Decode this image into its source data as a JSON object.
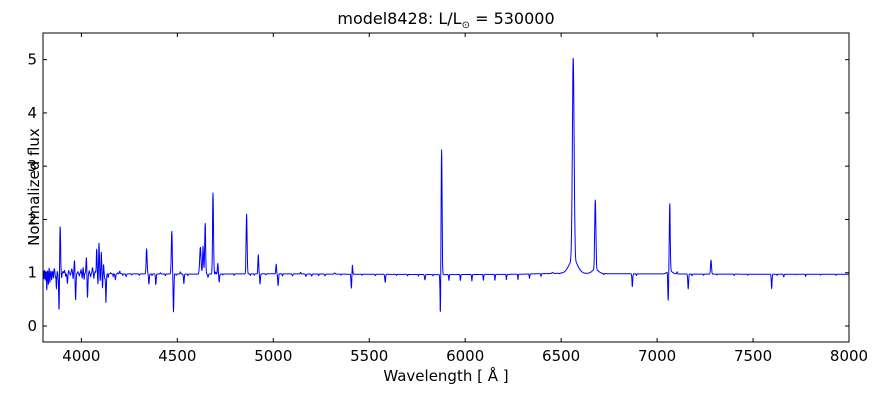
{
  "chart_data": {
    "type": "line",
    "title": "model8428: L/L⊙ = 530000",
    "title_parts": [
      "model8428: L/L",
      "⊙",
      " = 530000"
    ],
    "xlabel": "Wavelength [ Å ]",
    "ylabel": "Normalized flux",
    "xlim": [
      3800,
      8000
    ],
    "ylim": [
      -0.3,
      5.5
    ],
    "xticks": [
      4000,
      4500,
      5000,
      5500,
      6000,
      6500,
      7000,
      7500,
      8000
    ],
    "yticks": [
      0,
      1,
      2,
      3,
      4,
      5
    ],
    "line_color": "#0000ff",
    "axis_color": "#000000",
    "background": "#ffffff",
    "legend": "none",
    "grid": false,
    "continuum_baseline": [
      [
        3800,
        1.0
      ],
      [
        4150,
        0.98
      ],
      [
        4600,
        0.975
      ],
      [
        5000,
        0.98
      ],
      [
        5880,
        0.965
      ],
      [
        6250,
        0.97
      ],
      [
        6500,
        0.99
      ],
      [
        6800,
        0.98
      ],
      [
        7200,
        0.975
      ],
      [
        8000,
        0.97
      ]
    ],
    "features_format": [
      "wavelength_A",
      "peak_normalized_flux",
      "gaussian_sigma_A"
    ],
    "features": [
      [
        3802,
        1.05,
        1.5
      ],
      [
        3805,
        0.88,
        1.5
      ],
      [
        3809,
        1.07,
        1.5
      ],
      [
        3812,
        0.85,
        1.5
      ],
      [
        3816,
        1.04,
        1.5
      ],
      [
        3820,
        0.68,
        1.5
      ],
      [
        3824,
        1.05,
        1.5
      ],
      [
        3828,
        0.78,
        1.5
      ],
      [
        3832,
        1.1,
        1.5
      ],
      [
        3836,
        0.82,
        1.5
      ],
      [
        3841,
        1.04,
        1.5
      ],
      [
        3845,
        0.87,
        1.5
      ],
      [
        3850,
        1.03,
        1.5
      ],
      [
        3854,
        0.9,
        1.5
      ],
      [
        3859,
        1.08,
        2
      ],
      [
        3865,
        0.91,
        1.5
      ],
      [
        3870,
        0.7,
        1.5
      ],
      [
        3875,
        1.03,
        1.5
      ],
      [
        3879,
        0.93,
        1.5
      ],
      [
        3884,
        0.2,
        2
      ],
      [
        3889,
        1.9,
        2.5
      ],
      [
        3897,
        0.91,
        1.5
      ],
      [
        3904,
        1.03,
        1.5
      ],
      [
        3912,
        1.05,
        1.5
      ],
      [
        3919,
        0.94,
        1.5
      ],
      [
        3927,
        0.81,
        2
      ],
      [
        3934,
        1.05,
        1.5
      ],
      [
        3943,
        0.96,
        1.5
      ],
      [
        3950,
        1.08,
        2
      ],
      [
        3957,
        0.9,
        1.5
      ],
      [
        3964,
        1.24,
        2
      ],
      [
        3970,
        0.5,
        2
      ],
      [
        3982,
        1.03,
        1.5
      ],
      [
        3989,
        0.95,
        1.5
      ],
      [
        3998,
        1.07,
        1.5
      ],
      [
        4004,
        0.91,
        1.5
      ],
      [
        4009,
        1.11,
        1.5
      ],
      [
        4014,
        0.89,
        1.5
      ],
      [
        4026,
        1.3,
        2
      ],
      [
        4032,
        0.55,
        2
      ],
      [
        4041,
        1.05,
        1.5
      ],
      [
        4048,
        0.94,
        1.5
      ],
      [
        4058,
        1.11,
        2
      ],
      [
        4065,
        0.91,
        1.5
      ],
      [
        4072,
        1.04,
        1.5
      ],
      [
        4080,
        1.46,
        2
      ],
      [
        4086,
        0.8,
        1.5
      ],
      [
        4092,
        1.57,
        2
      ],
      [
        4098,
        0.86,
        1.5
      ],
      [
        4104,
        1.4,
        2
      ],
      [
        4110,
        0.73,
        1.5
      ],
      [
        4116,
        1.17,
        1.5
      ],
      [
        4122,
        0.91,
        1.5
      ],
      [
        4128,
        0.46,
        2
      ],
      [
        4140,
        0.93,
        1.5
      ],
      [
        4153,
        1.02,
        1.5
      ],
      [
        4166,
        0.95,
        1.5
      ],
      [
        4177,
        0.89,
        2
      ],
      [
        4190,
        1.02,
        1.5
      ],
      [
        4200,
        1.05,
        2
      ],
      [
        4216,
        0.97,
        1.5
      ],
      [
        4233,
        0.95,
        2
      ],
      [
        4262,
        0.98,
        2
      ],
      [
        4302,
        0.975,
        2
      ],
      [
        4340,
        1.47,
        2.5
      ],
      [
        4352,
        0.81,
        2
      ],
      [
        4368,
        0.97,
        1.5
      ],
      [
        4388,
        0.8,
        2
      ],
      [
        4412,
        1.02,
        2
      ],
      [
        4438,
        0.97,
        1.5
      ],
      [
        4471,
        1.8,
        2.5
      ],
      [
        4480,
        0.29,
        2
      ],
      [
        4495,
        0.98,
        1.5
      ],
      [
        4516,
        1.04,
        2
      ],
      [
        4534,
        0.82,
        2
      ],
      [
        4555,
        0.97,
        1.5
      ],
      [
        4620,
        1.5,
        3.5
      ],
      [
        4634,
        1.52,
        2.5
      ],
      [
        4645,
        1.95,
        2.5
      ],
      [
        4660,
        0.94,
        2
      ],
      [
        4686,
        2.52,
        2.5
      ],
      [
        4700,
        1.04,
        1.5
      ],
      [
        4711,
        1.2,
        2
      ],
      [
        4718,
        0.85,
        2
      ],
      [
        4736,
        0.98,
        1.5
      ],
      [
        4796,
        0.975,
        1.5
      ],
      [
        4861,
        2.12,
        2.5
      ],
      [
        4881,
        0.97,
        1.5
      ],
      [
        4901,
        0.975,
        1.5
      ],
      [
        4922,
        1.36,
        2
      ],
      [
        4931,
        0.81,
        2
      ],
      [
        4961,
        0.98,
        1.5
      ],
      [
        5015,
        1.18,
        2
      ],
      [
        5025,
        0.78,
        2
      ],
      [
        5048,
        0.96,
        1.5
      ],
      [
        5100,
        0.965,
        2
      ],
      [
        5142,
        1.03,
        2
      ],
      [
        5170,
        0.955,
        2
      ],
      [
        5200,
        0.96,
        2
      ],
      [
        5236,
        0.97,
        1.5
      ],
      [
        5270,
        0.965,
        2
      ],
      [
        5320,
        1.02,
        2.5
      ],
      [
        5352,
        0.98,
        1.5
      ],
      [
        5407,
        0.73,
        2
      ],
      [
        5412,
        1.18,
        2
      ],
      [
        5462,
        0.98,
        1.5
      ],
      [
        5532,
        0.975,
        1.5
      ],
      [
        5583,
        0.85,
        2
      ],
      [
        5642,
        0.98,
        1.5
      ],
      [
        5700,
        0.975,
        1.5
      ],
      [
        5756,
        0.97,
        1.5
      ],
      [
        5790,
        0.9,
        2
      ],
      [
        5832,
        0.975,
        1.5
      ],
      [
        5871,
        0.18,
        2
      ],
      [
        5877,
        3.35,
        2.5
      ],
      [
        5915,
        0.89,
        1.5
      ],
      [
        5975,
        0.89,
        1.5
      ],
      [
        6035,
        0.88,
        1.5
      ],
      [
        6095,
        0.89,
        1.5
      ],
      [
        6155,
        0.89,
        1.5
      ],
      [
        6215,
        0.9,
        1.5
      ],
      [
        6275,
        0.9,
        1.5
      ],
      [
        6335,
        0.92,
        1.5
      ],
      [
        6395,
        0.95,
        1.5
      ],
      [
        6455,
        1.02,
        3
      ],
      [
        6492,
        0.99,
        1.5
      ],
      [
        6563,
        4.78,
        4.5
      ],
      [
        6563,
        1.26,
        22
      ],
      [
        6678,
        2.3,
        3
      ],
      [
        6678,
        1.08,
        16
      ],
      [
        6722,
        0.98,
        1.5
      ],
      [
        6871,
        0.76,
        2
      ],
      [
        6892,
        0.97,
        1.5
      ],
      [
        7058,
        0.45,
        2
      ],
      [
        7066,
        2.26,
        2.5
      ],
      [
        7066,
        1.06,
        13
      ],
      [
        7104,
        1.04,
        2
      ],
      [
        7162,
        0.72,
        2
      ],
      [
        7182,
        0.97,
        1.5
      ],
      [
        7242,
        0.98,
        1.5
      ],
      [
        7281,
        1.26,
        2.5
      ],
      [
        7312,
        0.985,
        1.5
      ],
      [
        7402,
        0.975,
        1.5
      ],
      [
        7472,
        0.98,
        1.5
      ],
      [
        7597,
        0.73,
        2
      ],
      [
        7625,
        0.98,
        1.5
      ],
      [
        7660,
        0.95,
        2
      ],
      [
        7722,
        0.99,
        1.5
      ],
      [
        7774,
        0.96,
        1.5
      ],
      [
        7852,
        0.985,
        1.5
      ],
      [
        7932,
        0.98,
        1.5
      ]
    ]
  }
}
